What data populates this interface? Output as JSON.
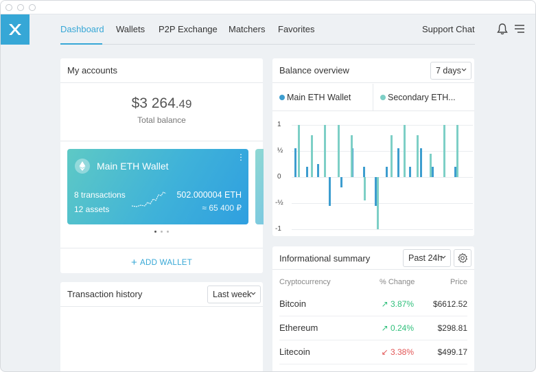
{
  "nav": {
    "items": [
      "Dashboard",
      "Wallets",
      "P2P Exchange",
      "Matchers",
      "Favorites"
    ],
    "active": "Dashboard",
    "support": "Support Chat"
  },
  "accounts": {
    "title": "My accounts",
    "balance_main": "$3 264",
    "balance_cents": ".49",
    "balance_label": "Total balance",
    "wallet": {
      "name": "Main ETH Wallet",
      "transactions": "8 transactions",
      "assets": "12 assets",
      "amount": "502.000004 ETH",
      "fiat": "≈ 65 400 ₽"
    },
    "add_wallet": "ADD WALLET"
  },
  "history": {
    "title": "Transaction history",
    "filter": "Last week"
  },
  "overview": {
    "title": "Balance overview",
    "range": "7 days",
    "chart_data": {
      "type": "bar",
      "yticks": [
        "1",
        "½",
        "0",
        "-½",
        "-1"
      ],
      "ylim": [
        -1,
        1
      ],
      "series": [
        {
          "name": "Main ETH Wallet",
          "color": "#3d9dcf",
          "values": [
            0.55,
            0.2,
            0.25,
            -0.55,
            -0.2,
            0.55,
            0.2,
            -0.55,
            0.2,
            0.55,
            0.2,
            0.55,
            0.2,
            0.55,
            0.2
          ]
        },
        {
          "name": "Secondary ETH...",
          "color": "#7dcfc6",
          "values": [
            1.0,
            0.8,
            1.0,
            1.0,
            0.8,
            -0.45,
            -1.0,
            0.8,
            1.0,
            0.8,
            0.45,
            1.0,
            1.0
          ]
        }
      ]
    }
  },
  "summary": {
    "title": "Informational summary",
    "range": "Past 24h",
    "headers": [
      "Cryptocurrency",
      "% Change",
      "Price"
    ],
    "rows": [
      {
        "name": "Bitcoin",
        "change": "3.87%",
        "dir": "up",
        "price": "$6612.52"
      },
      {
        "name": "Ethereum",
        "change": "0.24%",
        "dir": "up",
        "price": "$298.81"
      },
      {
        "name": "Litecoin",
        "change": "3.38%",
        "dir": "down",
        "price": "$499.17"
      }
    ]
  }
}
